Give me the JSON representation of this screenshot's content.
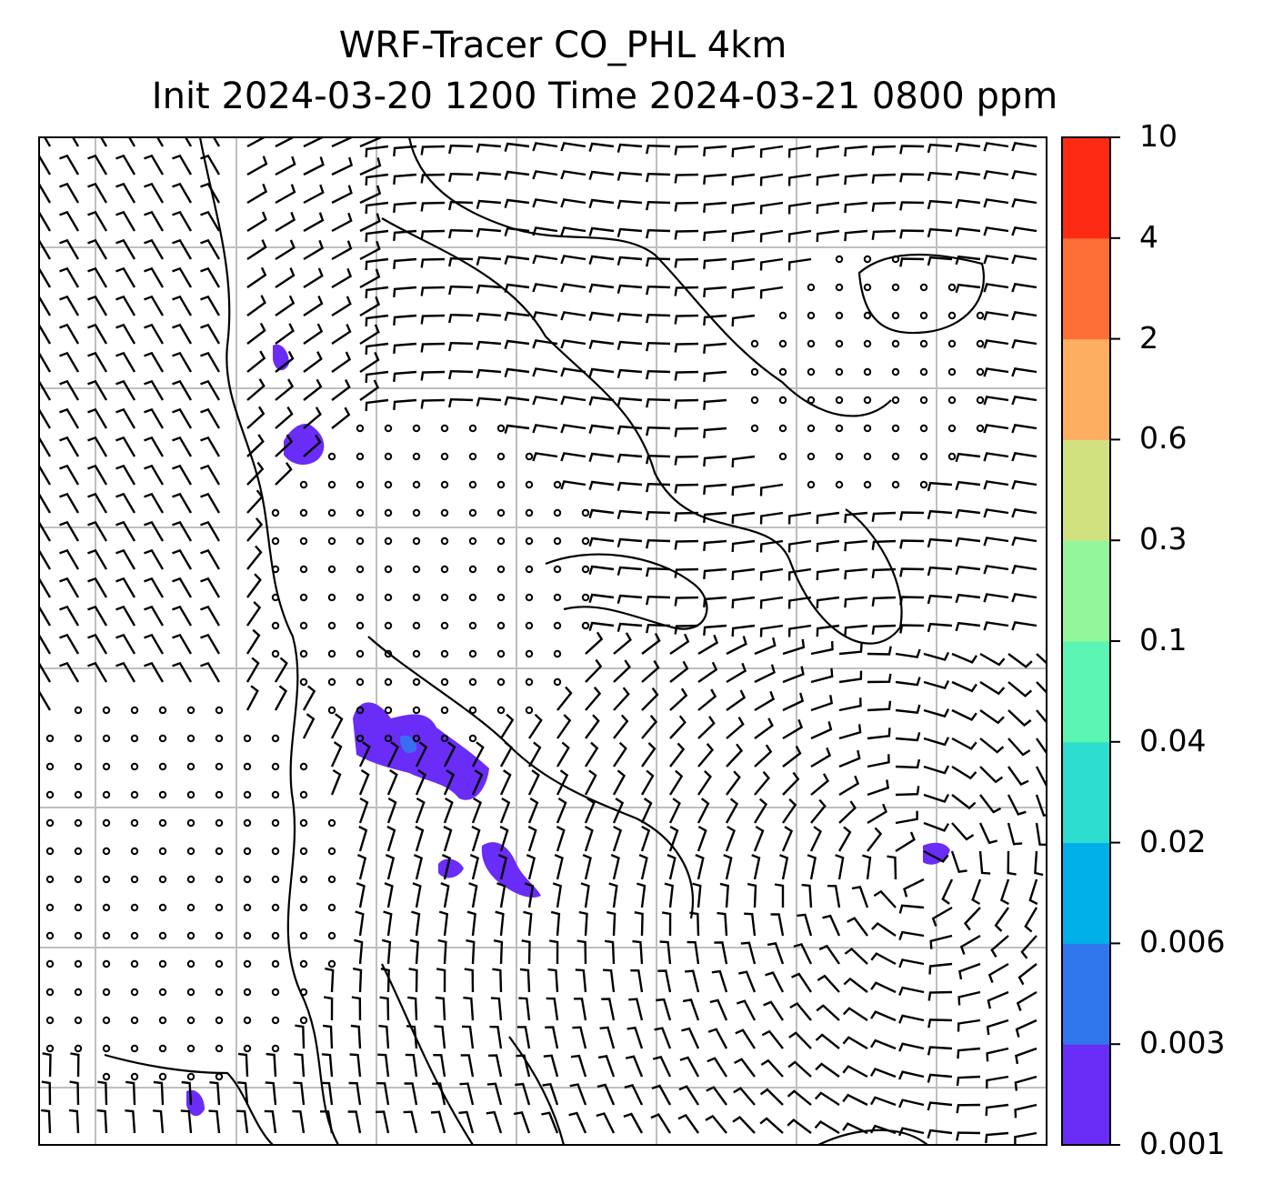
{
  "title": {
    "line1": "WRF-Tracer CO_PHL 4km",
    "line2": "Init 2024-03-20 1200 Time 2024-03-21 0800 ppm"
  },
  "colorbar": {
    "levels": [
      "0.001",
      "0.003",
      "0.006",
      "0.02",
      "0.04",
      "0.1",
      "0.3",
      "0.6",
      "2",
      "4",
      "10"
    ],
    "colors": [
      "#6a2cf7",
      "#3077ee",
      "#00b0e8",
      "#2ddecf",
      "#5cf5b4",
      "#94f69a",
      "#d2e17f",
      "#fdae60",
      "#fe6f38",
      "#ff2a14"
    ]
  },
  "map": {
    "tracer_color": "#6a2cf7",
    "grid_color": "#bfbfbf",
    "line_color": "#000000"
  }
}
